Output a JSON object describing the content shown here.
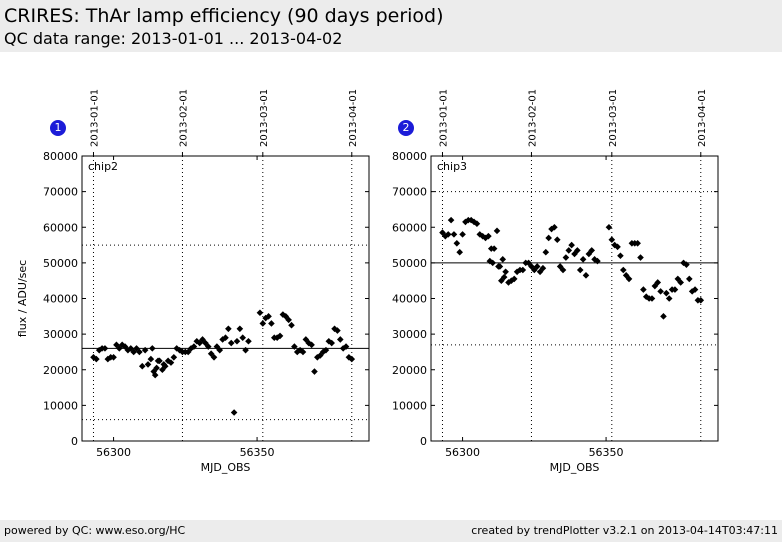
{
  "header": {
    "title": "CRIRES: ThAr lamp efficiency (90 days period)",
    "subtitle": "QC data range: 2013-01-01 ... 2013-04-02"
  },
  "footer": {
    "left": "powered by QC: www.eso.org/HC",
    "right": "created by trendPlotter v3.2.1 on 2013-04-14T03:47:11"
  },
  "chart_data": [
    {
      "type": "scatter",
      "badge": "1",
      "panel_label": "chip2",
      "xlabel": "MJD_OBS",
      "ylabel": "flux / ADU/sec",
      "xlim": [
        56289,
        56389
      ],
      "ylim": [
        0,
        80000
      ],
      "x_ticks": [
        56300,
        56350
      ],
      "y_ticks": [
        0,
        10000,
        20000,
        30000,
        40000,
        50000,
        60000,
        70000,
        80000
      ],
      "date_ticks": [
        {
          "label": "2013-01-01",
          "x": 56293
        },
        {
          "label": "2013-02-01",
          "x": 56324
        },
        {
          "label": "2013-03-01",
          "x": 56352
        },
        {
          "label": "2013-04-01",
          "x": 56383
        }
      ],
      "median_line": 26000,
      "limit_lines": [
        6000,
        55000
      ],
      "points": [
        [
          56293,
          23500
        ],
        [
          56294,
          23000
        ],
        [
          56295,
          25500
        ],
        [
          56296,
          26000
        ],
        [
          56297,
          26000
        ],
        [
          56298,
          23000
        ],
        [
          56299,
          23500
        ],
        [
          56300,
          23500
        ],
        [
          56301,
          27000
        ],
        [
          56302,
          26000
        ],
        [
          56303,
          27000
        ],
        [
          56304,
          26500
        ],
        [
          56305,
          25500
        ],
        [
          56306,
          26000
        ],
        [
          56307,
          25000
        ],
        [
          56308,
          26000
        ],
        [
          56309,
          25000
        ],
        [
          56310,
          21000
        ],
        [
          56311,
          25500
        ],
        [
          56312,
          21500
        ],
        [
          56313,
          23000
        ],
        [
          56313.5,
          26000
        ],
        [
          56314,
          19500
        ],
        [
          56314.5,
          18500
        ],
        [
          56315,
          20500
        ],
        [
          56315.5,
          22500
        ],
        [
          56316,
          22500
        ],
        [
          56317,
          20000
        ],
        [
          56317.5,
          21500
        ],
        [
          56318,
          21000
        ],
        [
          56319,
          22500
        ],
        [
          56320,
          22000
        ],
        [
          56321,
          23500
        ],
        [
          56322,
          26000
        ],
        [
          56323,
          25500
        ],
        [
          56324,
          25000
        ],
        [
          56325,
          25000
        ],
        [
          56326,
          25000
        ],
        [
          56327,
          26000
        ],
        [
          56328,
          26500
        ],
        [
          56329,
          28000
        ],
        [
          56330,
          27500
        ],
        [
          56331,
          28500
        ],
        [
          56332,
          27500
        ],
        [
          56333,
          26500
        ],
        [
          56334,
          24500
        ],
        [
          56335,
          23500
        ],
        [
          56336,
          26500
        ],
        [
          56337,
          25500
        ],
        [
          56338,
          28500
        ],
        [
          56339,
          29000
        ],
        [
          56340,
          31500
        ],
        [
          56341,
          27500
        ],
        [
          56342,
          8000
        ],
        [
          56343,
          28000
        ],
        [
          56344,
          31500
        ],
        [
          56345,
          29000
        ],
        [
          56346,
          25500
        ],
        [
          56347,
          28000
        ],
        [
          56351,
          36000
        ],
        [
          56352,
          33000
        ],
        [
          56353,
          34500
        ],
        [
          56354,
          35000
        ],
        [
          56355,
          33000
        ],
        [
          56356,
          29000
        ],
        [
          56357,
          29000
        ],
        [
          56358,
          29500
        ],
        [
          56359,
          35500
        ],
        [
          56360,
          35000
        ],
        [
          56361,
          34000
        ],
        [
          56362,
          32500
        ],
        [
          56363,
          26500
        ],
        [
          56364,
          25000
        ],
        [
          56365,
          25500
        ],
        [
          56366,
          25000
        ],
        [
          56367,
          28500
        ],
        [
          56368,
          27500
        ],
        [
          56369,
          27000
        ],
        [
          56370,
          19500
        ],
        [
          56371,
          23500
        ],
        [
          56372,
          24000
        ],
        [
          56373,
          25000
        ],
        [
          56374,
          25500
        ],
        [
          56375,
          28000
        ],
        [
          56376,
          27500
        ],
        [
          56377,
          31500
        ],
        [
          56378,
          31000
        ],
        [
          56379,
          28500
        ],
        [
          56380,
          26000
        ],
        [
          56381,
          26500
        ],
        [
          56382,
          23500
        ],
        [
          56383,
          23000
        ]
      ]
    },
    {
      "type": "scatter",
      "badge": "2",
      "panel_label": "chip3",
      "xlabel": "MJD_OBS",
      "ylabel": "",
      "xlim": [
        56289,
        56389
      ],
      "ylim": [
        0,
        80000
      ],
      "x_ticks": [
        56300,
        56350
      ],
      "y_ticks": [
        0,
        10000,
        20000,
        30000,
        40000,
        50000,
        60000,
        70000,
        80000
      ],
      "date_ticks": [
        {
          "label": "2013-01-01",
          "x": 56293
        },
        {
          "label": "2013-02-01",
          "x": 56324
        },
        {
          "label": "2013-03-01",
          "x": 56352
        },
        {
          "label": "2013-04-01",
          "x": 56383
        }
      ],
      "median_line": 50000,
      "limit_lines": [
        27000,
        70000
      ],
      "points": [
        [
          56293,
          58500
        ],
        [
          56294,
          57500
        ],
        [
          56295,
          58000
        ],
        [
          56296,
          62000
        ],
        [
          56297,
          58000
        ],
        [
          56298,
          55500
        ],
        [
          56299,
          53000
        ],
        [
          56300,
          58000
        ],
        [
          56301,
          61500
        ],
        [
          56302,
          62000
        ],
        [
          56303,
          62000
        ],
        [
          56304,
          61500
        ],
        [
          56305,
          61000
        ],
        [
          56306,
          58000
        ],
        [
          56307,
          57500
        ],
        [
          56308,
          57000
        ],
        [
          56309,
          57500
        ],
        [
          56309.5,
          50500
        ],
        [
          56310,
          54000
        ],
        [
          56310.5,
          50000
        ],
        [
          56311,
          54000
        ],
        [
          56312,
          59000
        ],
        [
          56312.5,
          49000
        ],
        [
          56313,
          49000
        ],
        [
          56313.5,
          45000
        ],
        [
          56314,
          51000
        ],
        [
          56314.5,
          46000
        ],
        [
          56315,
          47500
        ],
        [
          56316,
          44500
        ],
        [
          56317,
          45000
        ],
        [
          56318,
          45500
        ],
        [
          56319,
          47500
        ],
        [
          56320,
          48000
        ],
        [
          56321,
          48000
        ],
        [
          56322,
          50000
        ],
        [
          56323,
          50000
        ],
        [
          56324,
          49000
        ],
        [
          56325,
          48000
        ],
        [
          56326,
          49000
        ],
        [
          56327,
          47500
        ],
        [
          56328,
          48500
        ],
        [
          56329,
          53000
        ],
        [
          56330,
          57000
        ],
        [
          56331,
          59500
        ],
        [
          56332,
          60000
        ],
        [
          56333,
          56500
        ],
        [
          56334,
          49000
        ],
        [
          56335,
          48000
        ],
        [
          56336,
          51500
        ],
        [
          56337,
          53500
        ],
        [
          56338,
          55000
        ],
        [
          56339,
          52500
        ],
        [
          56340,
          53500
        ],
        [
          56341,
          48000
        ],
        [
          56342,
          51000
        ],
        [
          56343,
          46500
        ],
        [
          56344,
          52500
        ],
        [
          56345,
          53500
        ],
        [
          56346,
          51000
        ],
        [
          56347,
          50500
        ],
        [
          56351,
          60000
        ],
        [
          56352,
          56500
        ],
        [
          56353,
          55000
        ],
        [
          56354,
          54500
        ],
        [
          56355,
          52000
        ],
        [
          56356,
          48000
        ],
        [
          56357,
          46500
        ],
        [
          56358,
          45500
        ],
        [
          56359,
          55500
        ],
        [
          56360,
          55500
        ],
        [
          56361,
          55500
        ],
        [
          56362,
          51500
        ],
        [
          56363,
          42500
        ],
        [
          56364,
          40500
        ],
        [
          56365,
          40000
        ],
        [
          56366,
          40000
        ],
        [
          56367,
          43500
        ],
        [
          56368,
          44500
        ],
        [
          56369,
          42000
        ],
        [
          56370,
          35000
        ],
        [
          56371,
          41500
        ],
        [
          56372,
          40000
        ],
        [
          56373,
          42500
        ],
        [
          56374,
          42500
        ],
        [
          56375,
          45500
        ],
        [
          56376,
          44500
        ],
        [
          56377,
          50000
        ],
        [
          56378,
          49500
        ],
        [
          56379,
          45500
        ],
        [
          56380,
          42000
        ],
        [
          56381,
          42500
        ],
        [
          56382,
          39500
        ],
        [
          56383,
          39500
        ]
      ]
    }
  ]
}
